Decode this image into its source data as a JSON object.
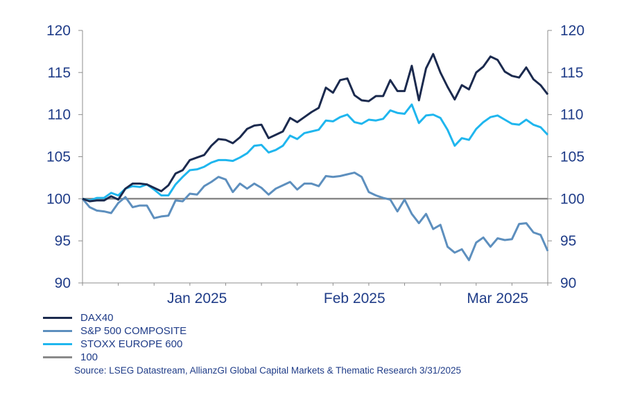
{
  "chart_data": {
    "type": "line",
    "ylim": [
      90,
      120
    ],
    "yticks": [
      90,
      95,
      100,
      105,
      110,
      115,
      120
    ],
    "xticks": [
      {
        "label": "Jan 2025",
        "index": 16
      },
      {
        "label": "Feb 2025",
        "index": 38
      },
      {
        "label": "Mar 2025",
        "index": 58
      }
    ],
    "series": [
      {
        "name": "DAX40",
        "color": "#1b2a4e",
        "values": [
          100,
          99.7,
          99.8,
          99.8,
          100.3,
          99.9,
          101.2,
          101.8,
          101.8,
          101.7,
          101.3,
          100.9,
          101.6,
          103.0,
          103.4,
          104.6,
          104.9,
          105.2,
          106.3,
          107.1,
          107.0,
          106.6,
          107.3,
          108.3,
          108.7,
          108.8,
          107.2,
          107.6,
          108.0,
          109.6,
          109.1,
          109.7,
          110.3,
          110.8,
          113.2,
          112.6,
          114.1,
          114.3,
          112.3,
          111.7,
          111.6,
          112.2,
          112.2,
          114.1,
          112.8,
          112.8,
          115.8,
          111.7,
          115.5,
          117.2,
          115.0,
          113.3,
          111.8,
          113.5,
          113.0,
          115.0,
          115.7,
          116.9,
          116.5,
          115.1,
          114.6,
          114.4,
          115.6,
          114.2,
          113.5,
          112.4
        ]
      },
      {
        "name": "S&P 500 COMPOSITE",
        "color": "#5d8fbe",
        "values": [
          100,
          99.0,
          98.6,
          98.5,
          98.3,
          99.5,
          100.2,
          99.0,
          99.2,
          99.2,
          97.7,
          97.9,
          98.0,
          99.8,
          99.7,
          100.6,
          100.5,
          101.5,
          102.0,
          102.6,
          102.3,
          100.8,
          101.8,
          101.2,
          101.8,
          101.3,
          100.5,
          101.2,
          101.6,
          102.0,
          101.1,
          101.8,
          101.8,
          101.5,
          102.7,
          102.6,
          102.7,
          102.9,
          103.1,
          102.6,
          100.8,
          100.4,
          100.1,
          99.9,
          98.5,
          99.9,
          98.2,
          97.1,
          98.2,
          96.4,
          96.9,
          94.3,
          93.6,
          94.0,
          92.7,
          94.8,
          95.4,
          94.3,
          95.3,
          95.1,
          95.2,
          97.0,
          97.1,
          96.0,
          95.7,
          93.8
        ]
      },
      {
        "name": "STOXX EUROPE 600",
        "color": "#1fb6ee",
        "values": [
          100,
          99.8,
          100.1,
          100.1,
          100.7,
          100.4,
          101.2,
          101.5,
          101.4,
          101.7,
          101.1,
          100.4,
          100.4,
          101.7,
          102.6,
          103.4,
          103.5,
          103.8,
          104.3,
          104.6,
          104.6,
          104.5,
          104.9,
          105.4,
          106.3,
          106.4,
          105.5,
          105.8,
          106.3,
          107.5,
          107.1,
          107.8,
          108.0,
          108.2,
          109.3,
          109.2,
          109.7,
          110.0,
          109.1,
          108.9,
          109.4,
          109.3,
          109.5,
          110.5,
          110.2,
          110.1,
          111.2,
          109.0,
          109.9,
          110.0,
          109.6,
          108.2,
          106.3,
          107.2,
          107.0,
          108.3,
          109.1,
          109.7,
          109.9,
          109.4,
          108.9,
          108.8,
          109.4,
          108.8,
          108.5,
          107.6
        ]
      },
      {
        "name": "100",
        "color": "#8a8a8a",
        "values": [
          100,
          100,
          100,
          100,
          100,
          100,
          100,
          100,
          100,
          100,
          100,
          100,
          100,
          100,
          100,
          100,
          100,
          100,
          100,
          100,
          100,
          100,
          100,
          100,
          100,
          100,
          100,
          100,
          100,
          100,
          100,
          100,
          100,
          100,
          100,
          100,
          100,
          100,
          100,
          100,
          100,
          100,
          100,
          100,
          100,
          100,
          100,
          100,
          100,
          100,
          100,
          100,
          100,
          100,
          100,
          100,
          100,
          100,
          100,
          100,
          100,
          100,
          100,
          100,
          100,
          100
        ]
      }
    ]
  },
  "source": "Source: LSEG Datastream, AllianzGI Global Capital Markets & Thematic Research 3/31/2025"
}
